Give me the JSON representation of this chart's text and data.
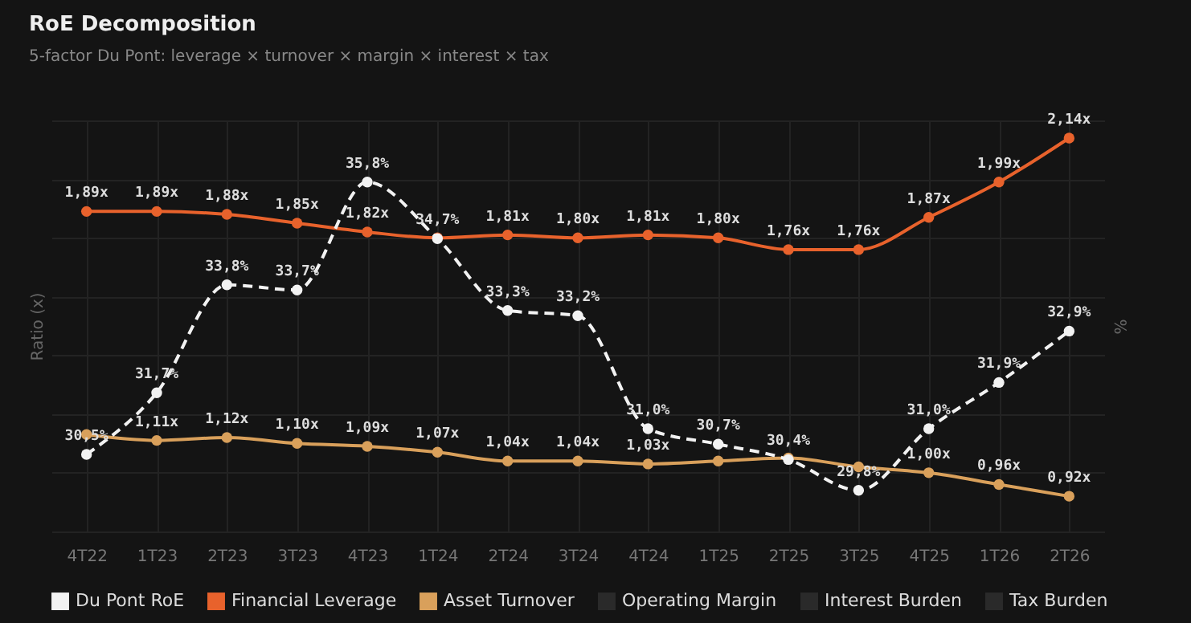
{
  "chart_data": {
    "type": "line",
    "title": "RoE Decomposition",
    "subtitle": "5-factor Du Pont: leverage × turnover × margin × interest × tax",
    "ylabel": "Ratio (x)",
    "y2label": "%",
    "categories": [
      "4T22",
      "1T23",
      "2T23",
      "3T23",
      "4T23",
      "1T24",
      "2T24",
      "3T24",
      "4T24",
      "1T25",
      "2T25",
      "3T25",
      "4T25",
      "1T26",
      "2T26"
    ],
    "ylim": [
      0.8,
      2.2
    ],
    "y2lim": [
      29,
      37
    ],
    "tick_labels": "x",
    "grid": true,
    "legend": "bottom",
    "marker": "circle",
    "series": [
      {
        "name": "Du Pont RoE",
        "color": "#f2f2f2",
        "axis": "y2",
        "line_style": "dashed",
        "values": [
          30.5,
          31.7,
          33.8,
          33.7,
          35.8,
          34.7,
          33.3,
          33.2,
          31.0,
          30.7,
          30.4,
          29.8,
          31.0,
          31.9,
          32.9
        ],
        "value_labels": [
          "30,5%",
          "31,7%",
          "33,8%",
          "33,7%",
          "35,8%",
          "34,7%",
          "33,3%",
          "33,2%",
          "31,0%",
          "30,7%",
          "30,4%",
          "29,8%",
          "31,0%",
          "31,9%",
          "32,9%"
        ]
      },
      {
        "name": "Financial Leverage",
        "color": "#e8622c",
        "line_style": "solid",
        "values": [
          1.89,
          1.89,
          1.88,
          1.85,
          1.82,
          1.8,
          1.81,
          1.8,
          1.81,
          1.8,
          1.76,
          1.76,
          1.87,
          1.99,
          2.14
        ],
        "value_labels": [
          "1,89x",
          "1,89x",
          "1,88x",
          "1,85x",
          "1,82x",
          null,
          "1,81x",
          "1,80x",
          "1,81x",
          "1,80x",
          "1,76x",
          "1,76x",
          "1,87x",
          "1,99x",
          "2,14x"
        ]
      },
      {
        "name": "Asset Turnover",
        "color": "#d9a05b",
        "line_style": "solid",
        "values": [
          1.13,
          1.11,
          1.12,
          1.1,
          1.09,
          1.07,
          1.04,
          1.04,
          1.03,
          1.04,
          1.05,
          1.02,
          1.0,
          0.96,
          0.92
        ],
        "value_labels": [
          null,
          "1,11x",
          "1,12x",
          "1,10x",
          "1,09x",
          "1,07x",
          "1,04x",
          "1,04x",
          "1,03x",
          null,
          null,
          null,
          "1,00x",
          "0,96x",
          "0,92x"
        ]
      },
      {
        "name": "Operating Margin",
        "color": "#2a2a2a",
        "line_style": "solid",
        "values": [
          null,
          null,
          null,
          null,
          null,
          null,
          null,
          null,
          null,
          null,
          null,
          null,
          null,
          null,
          null
        ]
      },
      {
        "name": "Interest Burden",
        "color": "#2a2a2a",
        "line_style": "solid",
        "values": [
          null,
          null,
          null,
          null,
          null,
          null,
          null,
          null,
          null,
          null,
          null,
          null,
          null,
          null,
          null
        ]
      },
      {
        "name": "Tax Burden",
        "color": "#2a2a2a",
        "line_style": "solid",
        "values": [
          null,
          null,
          null,
          null,
          null,
          null,
          null,
          null,
          null,
          null,
          null,
          null,
          null,
          null,
          null
        ]
      }
    ]
  }
}
